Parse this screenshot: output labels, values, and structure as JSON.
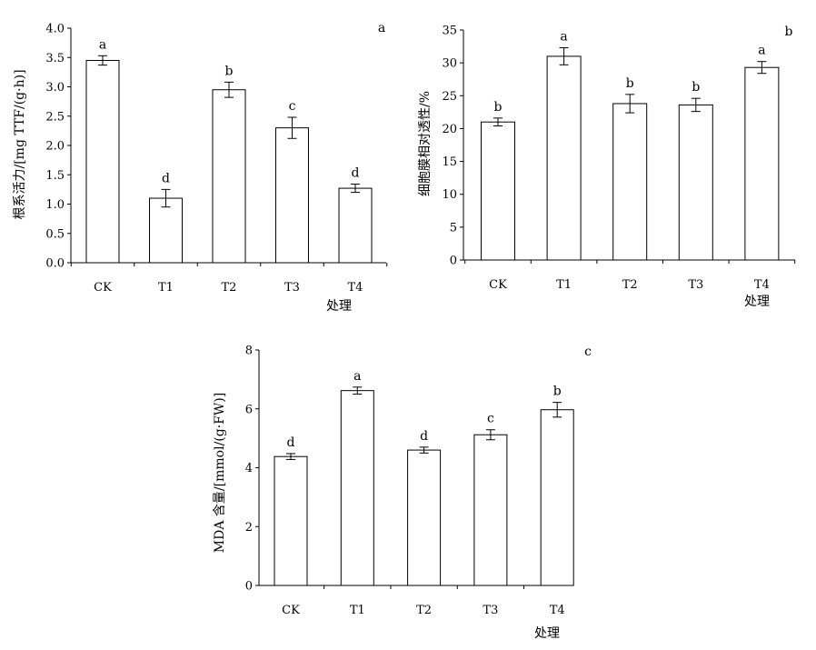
{
  "chart_data": [
    {
      "type": "bar",
      "panel_label": "a",
      "categories": [
        "CK",
        "T1",
        "T2",
        "T3",
        "T4"
      ],
      "values": [
        3.45,
        1.1,
        2.95,
        2.3,
        1.27
      ],
      "errors": [
        0.08,
        0.15,
        0.13,
        0.18,
        0.07
      ],
      "letters": [
        "a",
        "d",
        "b",
        "c",
        "d"
      ],
      "ylabel": "根系活力/[mg TTF/(g·h)]",
      "xlabel": "处理",
      "ylim": [
        0,
        4
      ],
      "yticks": [
        "0.0",
        "0.5",
        "1.0",
        "1.5",
        "2.0",
        "2.5",
        "3.0",
        "3.5",
        "4.0"
      ],
      "grid": false
    },
    {
      "type": "bar",
      "panel_label": "b",
      "categories": [
        "CK",
        "T1",
        "T2",
        "T3",
        "T4"
      ],
      "values": [
        21.0,
        31.0,
        23.8,
        23.6,
        29.3
      ],
      "errors": [
        0.6,
        1.3,
        1.4,
        1.0,
        0.9
      ],
      "letters": [
        "b",
        "a",
        "b",
        "b",
        "a"
      ],
      "ylabel": "细胞膜相对透性/%",
      "xlabel": "处理",
      "ylim": [
        0,
        35
      ],
      "yticks": [
        "0",
        "5",
        "10",
        "15",
        "20",
        "25",
        "30",
        "35"
      ],
      "grid": false
    },
    {
      "type": "bar",
      "panel_label": "c",
      "categories": [
        "CK",
        "T1",
        "T2",
        "T3",
        "T4"
      ],
      "values": [
        4.38,
        6.62,
        4.6,
        5.12,
        5.97
      ],
      "errors": [
        0.1,
        0.12,
        0.1,
        0.17,
        0.25
      ],
      "letters": [
        "d",
        "a",
        "d",
        "c",
        "b"
      ],
      "ylabel": "MDA 含量/[mmol/(g·FW)]",
      "xlabel": "处理",
      "ylim": [
        0,
        8
      ],
      "yticks": [
        "0",
        "2",
        "4",
        "6",
        "8"
      ],
      "grid": false
    }
  ]
}
